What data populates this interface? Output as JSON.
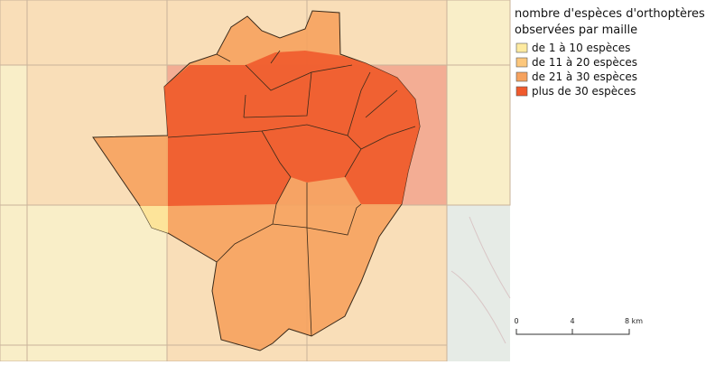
{
  "legend": {
    "title_lines": [
      "nombre d'espèces d'orthoptères",
      "observées par maille"
    ],
    "items": [
      {
        "label": "de 1 à 10 espèces",
        "color": "#fdeaa0"
      },
      {
        "label": "de 11 à 20 espèces",
        "color": "#fcc77c"
      },
      {
        "label": "de 21 à 30 espèces",
        "color": "#f6a25e"
      },
      {
        "label": "plus de 30 espèces",
        "color": "#f05a2c"
      }
    ]
  },
  "scale_bar": {
    "labels": [
      "0",
      "4",
      "8 km"
    ]
  }
}
